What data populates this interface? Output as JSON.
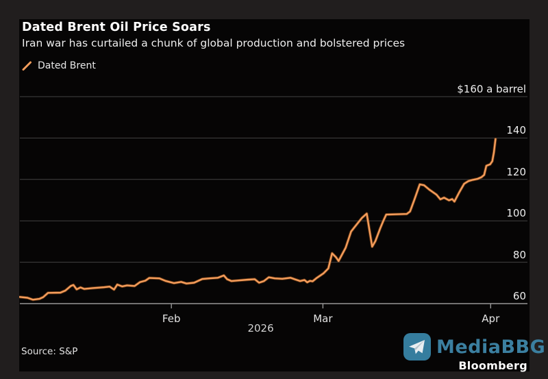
{
  "header": {
    "title": "Dated Brent Oil Price Soars",
    "subtitle": "Iran war has curtailed a chunk of global production and bolstered prices"
  },
  "legend": {
    "label": "Dated Brent"
  },
  "footer": {
    "source": "Source: S&P"
  },
  "watermark": {
    "name": "MediaBBG",
    "brand": "Bloomberg"
  },
  "colors": {
    "line": "#f49d5c",
    "line_glow": "#a85a1c",
    "grid": "#434343",
    "axis": "#979797",
    "watermark": "#3b7fa0",
    "card_bg": "#060505",
    "frame_bg": "#211e1e"
  },
  "chart_data": {
    "type": "line",
    "title": "Dated Brent Oil Price Soars",
    "x_unit": "day of year 2026 (Jan 1 = 0)",
    "x_domain": [
      3,
      96.8
    ],
    "y_domain": [
      60,
      160
    ],
    "grid": "horizontal",
    "legend_position": "top-left",
    "y_top_label": "$160 a barrel",
    "y_labels": [
      {
        "v": 160,
        "label": "$160 a barrel"
      },
      {
        "v": 140,
        "label": "140"
      },
      {
        "v": 120,
        "label": "120"
      },
      {
        "v": 100,
        "label": "100"
      },
      {
        "v": 80,
        "label": "80"
      },
      {
        "v": 60,
        "label": "60"
      }
    ],
    "gridline_values": [
      160,
      140,
      120,
      100,
      80
    ],
    "baseline_value": 60,
    "x_ticks": [
      {
        "t": 31,
        "label": "Feb"
      },
      {
        "t": 59,
        "label": "Mar"
      },
      {
        "t": 90,
        "label": "Apr"
      }
    ],
    "year_label": "2026",
    "year_label_t": 47.5,
    "series": [
      {
        "name": "Dated Brent",
        "unit": "USD per barrel",
        "points": [
          [
            3.0,
            63.2
          ],
          [
            4.4,
            62.8
          ],
          [
            5.4,
            61.9
          ],
          [
            6.6,
            62.3
          ],
          [
            7.3,
            63.1
          ],
          [
            8.2,
            65.2
          ],
          [
            10.5,
            65.3
          ],
          [
            11.4,
            66.3
          ],
          [
            12.4,
            68.5
          ],
          [
            12.9,
            69.0
          ],
          [
            13.5,
            66.9
          ],
          [
            14.2,
            67.8
          ],
          [
            14.9,
            67.1
          ],
          [
            16.4,
            67.5
          ],
          [
            18.6,
            67.9
          ],
          [
            19.6,
            68.2
          ],
          [
            20.4,
            66.8
          ],
          [
            21.0,
            69.2
          ],
          [
            21.9,
            68.3
          ],
          [
            22.8,
            68.8
          ],
          [
            24.2,
            68.5
          ],
          [
            25.2,
            70.4
          ],
          [
            26.2,
            71.1
          ],
          [
            26.9,
            72.4
          ],
          [
            28.8,
            72.2
          ],
          [
            29.9,
            71.0
          ],
          [
            31.5,
            69.9
          ],
          [
            32.8,
            70.5
          ],
          [
            33.8,
            69.7
          ],
          [
            35.2,
            70.1
          ],
          [
            36.7,
            71.9
          ],
          [
            38.0,
            72.2
          ],
          [
            39.6,
            72.5
          ],
          [
            40.7,
            73.6
          ],
          [
            41.3,
            71.8
          ],
          [
            42.1,
            70.9
          ],
          [
            43.4,
            71.2
          ],
          [
            45.2,
            71.6
          ],
          [
            46.4,
            71.8
          ],
          [
            47.2,
            70.1
          ],
          [
            48.1,
            70.9
          ],
          [
            49.0,
            72.7
          ],
          [
            50.1,
            72.2
          ],
          [
            51.5,
            72.0
          ],
          [
            53.0,
            72.5
          ],
          [
            53.9,
            71.7
          ],
          [
            54.8,
            70.9
          ],
          [
            55.6,
            71.4
          ],
          [
            56.1,
            70.3
          ],
          [
            56.6,
            71.0
          ],
          [
            57.1,
            70.8
          ],
          [
            57.8,
            72.3
          ],
          [
            59.1,
            74.6
          ],
          [
            60.0,
            77.0
          ],
          [
            60.7,
            84.3
          ],
          [
            61.4,
            82.5
          ],
          [
            61.9,
            80.6
          ],
          [
            63.2,
            87.0
          ],
          [
            64.2,
            94.8
          ],
          [
            64.8,
            96.8
          ],
          [
            65.6,
            99.4
          ],
          [
            66.2,
            101.4
          ],
          [
            67.1,
            103.5
          ],
          [
            68.1,
            87.5
          ],
          [
            68.7,
            90.2
          ],
          [
            69.6,
            96.4
          ],
          [
            70.2,
            100.2
          ],
          [
            70.7,
            103.0
          ],
          [
            74.5,
            103.3
          ],
          [
            75.1,
            104.5
          ],
          [
            75.9,
            110.2
          ],
          [
            76.9,
            117.6
          ],
          [
            77.7,
            117.2
          ],
          [
            78.7,
            115.0
          ],
          [
            80.0,
            112.6
          ],
          [
            80.7,
            110.4
          ],
          [
            81.4,
            111.2
          ],
          [
            82.3,
            109.9
          ],
          [
            82.9,
            110.5
          ],
          [
            83.3,
            109.3
          ],
          [
            84.2,
            113.8
          ],
          [
            85.1,
            117.9
          ],
          [
            85.9,
            119.2
          ],
          [
            86.7,
            119.8
          ],
          [
            87.6,
            120.3
          ],
          [
            88.3,
            121.1
          ],
          [
            88.8,
            122.2
          ],
          [
            89.2,
            126.6
          ],
          [
            89.9,
            127.3
          ],
          [
            90.3,
            128.8
          ],
          [
            90.6,
            133.0
          ],
          [
            90.9,
            139.5
          ]
        ]
      }
    ]
  }
}
